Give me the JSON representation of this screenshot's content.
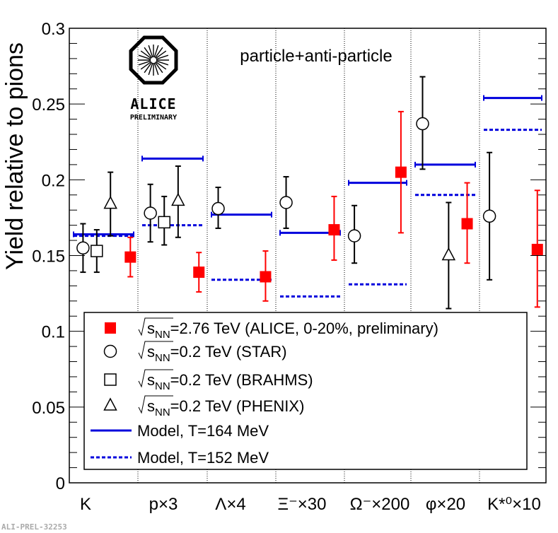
{
  "chart_data": {
    "type": "scatter",
    "ylabel": "Yield relative to pions",
    "ylim": [
      0,
      0.3
    ],
    "yticks": [
      0,
      0.05,
      0.1,
      0.15,
      0.2,
      0.25,
      0.3
    ],
    "ytick_labels": [
      "0",
      "0.05",
      "0.1",
      "0.15",
      "0.2",
      "0.25",
      "0.3"
    ],
    "title": "particle+anti-particle",
    "categories": [
      "K",
      "p×3",
      "Λ×4",
      "Ξ⁻×30",
      "Ω⁻×200",
      "φ×20",
      "K*⁰×10"
    ],
    "logo_text": "ALICE",
    "logo_subtext": "PRELIMINARY",
    "watermark": "ALI-PREL-32253",
    "colors": {
      "alice": "#ff0000",
      "model": "#0000dd",
      "rhic": "#000000"
    },
    "series": [
      {
        "name": "ALICE",
        "marker": "filled-square",
        "color": "#ff0000",
        "points": [
          {
            "cat": 0,
            "y": 0.149,
            "lo": 0.136,
            "hi": 0.162
          },
          {
            "cat": 1,
            "y": 0.139,
            "lo": 0.126,
            "hi": 0.152
          },
          {
            "cat": 2,
            "y": 0.136,
            "lo": 0.12,
            "hi": 0.153
          },
          {
            "cat": 3,
            "y": 0.167,
            "lo": 0.147,
            "hi": 0.189
          },
          {
            "cat": 4,
            "y": 0.205,
            "lo": 0.165,
            "hi": 0.245
          },
          {
            "cat": 5,
            "y": 0.171,
            "lo": 0.145,
            "hi": 0.198
          },
          {
            "cat": 6,
            "y": 0.154,
            "lo": 0.116,
            "hi": 0.193
          }
        ]
      },
      {
        "name": "STAR",
        "marker": "open-circle",
        "color": "#000000",
        "points": [
          {
            "cat": 0,
            "y": 0.155,
            "lo": 0.139,
            "hi": 0.171
          },
          {
            "cat": 1,
            "y": 0.178,
            "lo": 0.159,
            "hi": 0.197
          },
          {
            "cat": 2,
            "y": 0.181,
            "lo": 0.168,
            "hi": 0.195
          },
          {
            "cat": 3,
            "y": 0.185,
            "lo": 0.168,
            "hi": 0.202
          },
          {
            "cat": 4,
            "y": 0.163,
            "lo": 0.145,
            "hi": 0.183
          },
          {
            "cat": 5,
            "y": 0.237,
            "lo": 0.207,
            "hi": 0.268
          },
          {
            "cat": 6,
            "y": 0.176,
            "lo": 0.134,
            "hi": 0.218
          }
        ]
      },
      {
        "name": "BRAHMS",
        "marker": "open-square",
        "color": "#000000",
        "points": [
          {
            "cat": 0,
            "y": 0.153,
            "lo": 0.139,
            "hi": 0.167
          },
          {
            "cat": 1,
            "y": 0.172,
            "lo": 0.157,
            "hi": 0.189
          }
        ]
      },
      {
        "name": "PHENIX",
        "marker": "open-triangle",
        "color": "#000000",
        "points": [
          {
            "cat": 0,
            "y": 0.184,
            "lo": 0.163,
            "hi": 0.205
          },
          {
            "cat": 1,
            "y": 0.186,
            "lo": 0.162,
            "hi": 0.209
          },
          {
            "cat": 5,
            "y": 0.15,
            "lo": 0.115,
            "hi": 0.185
          }
        ]
      }
    ],
    "model_lines": [
      {
        "name": "Model, T=164 MeV",
        "style": "solid",
        "values": [
          0.164,
          0.214,
          0.177,
          0.165,
          0.198,
          0.21,
          0.254
        ]
      },
      {
        "name": "Model, T=152 MeV",
        "style": "dotted",
        "values": [
          0.163,
          0.17,
          0.134,
          0.123,
          0.131,
          0.19,
          0.233
        ]
      }
    ],
    "legend": {
      "placement": "bottom",
      "entries": [
        {
          "marker": "filled-square",
          "color": "#ff0000",
          "prefix": "s",
          "sub": "NN",
          "rest": "=2.76 TeV (ALICE, 0-20%, preliminary)"
        },
        {
          "marker": "open-circle",
          "color": "#000000",
          "prefix": "s",
          "sub": "NN",
          "rest": "=0.2 TeV (STAR)"
        },
        {
          "marker": "open-square",
          "color": "#000000",
          "prefix": "s",
          "sub": "NN",
          "rest": "=0.2 TeV (BRAHMS)"
        },
        {
          "marker": "open-triangle",
          "color": "#000000",
          "prefix": "s",
          "sub": "NN",
          "rest": "=0.2 TeV (PHENIX)"
        },
        {
          "marker": "solid-line",
          "color": "#0000dd",
          "prefix": "",
          "sub": "",
          "rest": "Model, T=164 MeV"
        },
        {
          "marker": "dotted-line",
          "color": "#0000dd",
          "prefix": "",
          "sub": "",
          "rest": "Model, T=152 MeV"
        }
      ]
    }
  }
}
